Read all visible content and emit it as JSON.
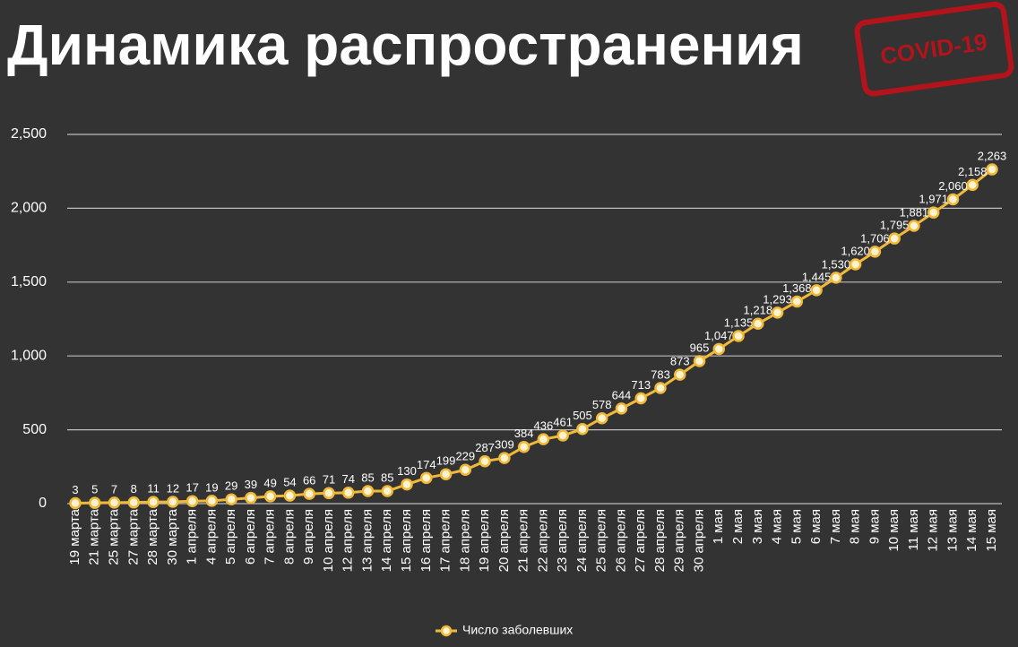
{
  "stamp": "COVID-19",
  "chart_data": {
    "type": "line",
    "title": "Динамика распространения",
    "categories": [
      "19 марта",
      "21 марта",
      "25 марта",
      "27 марта",
      "28 марта",
      "30 марта",
      "1 апреля",
      "4 апреля",
      "5 апреля",
      "6 апреля",
      "7 апреля",
      "8 апреля",
      "9 апреля",
      "10 апреля",
      "12 апреля",
      "13 апреля",
      "14 апреля",
      "15 апреля",
      "16 апреля",
      "17 апреля",
      "18 апреля",
      "19 апреля",
      "20 апреля",
      "21 апреля",
      "22 апреля",
      "23 апреля",
      "24 апреля",
      "25 апреля",
      "26 апреля",
      "27 апреля",
      "28 апреля",
      "29 апреля",
      "30 апреля",
      "1 мая",
      "2 мая",
      "3 мая",
      "4 мая",
      "5 мая",
      "6 мая",
      "7 мая",
      "8 мая",
      "9 мая",
      "10 мая",
      "11 мая",
      "12 мая",
      "13 мая",
      "14 мая",
      "15 мая"
    ],
    "series": [
      {
        "name": "Число заболевших",
        "color": "#f0b93a",
        "values": [
          3,
          5,
          7,
          8,
          11,
          12,
          17,
          19,
          29,
          39,
          49,
          54,
          66,
          71,
          74,
          85,
          85,
          130,
          174,
          199,
          229,
          287,
          309,
          384,
          436,
          461,
          505,
          578,
          644,
          713,
          783,
          873,
          965,
          1047,
          1135,
          1218,
          1293,
          1368,
          1445,
          1530,
          1620,
          1706,
          1795,
          1881,
          1971,
          2060,
          2158,
          2263
        ],
        "value_labels": [
          "3",
          "5",
          "7",
          "8",
          "11",
          "12",
          "17",
          "19",
          "29",
          "39",
          "49",
          "54",
          "66",
          "71",
          "74",
          "85",
          "85",
          "130",
          "174",
          "199",
          "229",
          "287",
          "309",
          "384",
          "436",
          "461",
          "505",
          "578",
          "644",
          "713",
          "783",
          "873",
          "965",
          "1,047",
          "1,135",
          "1,218",
          "1,293",
          "1,368",
          "1,445",
          "1,530",
          "1,620",
          "1,706",
          "1,795",
          "1,881",
          "1,971",
          "2,060",
          "2,158",
          "2,263"
        ]
      }
    ],
    "ylim": [
      0,
      2500
    ],
    "yticks": [
      0,
      500,
      {
        "value": 1000,
        "label": "1,000"
      },
      {
        "value": 1500,
        "label": "1,500"
      },
      {
        "value": 2000,
        "label": "2,000"
      },
      {
        "value": 2500,
        "label": "2,500"
      }
    ],
    "grid": true,
    "legend": "bottom"
  }
}
